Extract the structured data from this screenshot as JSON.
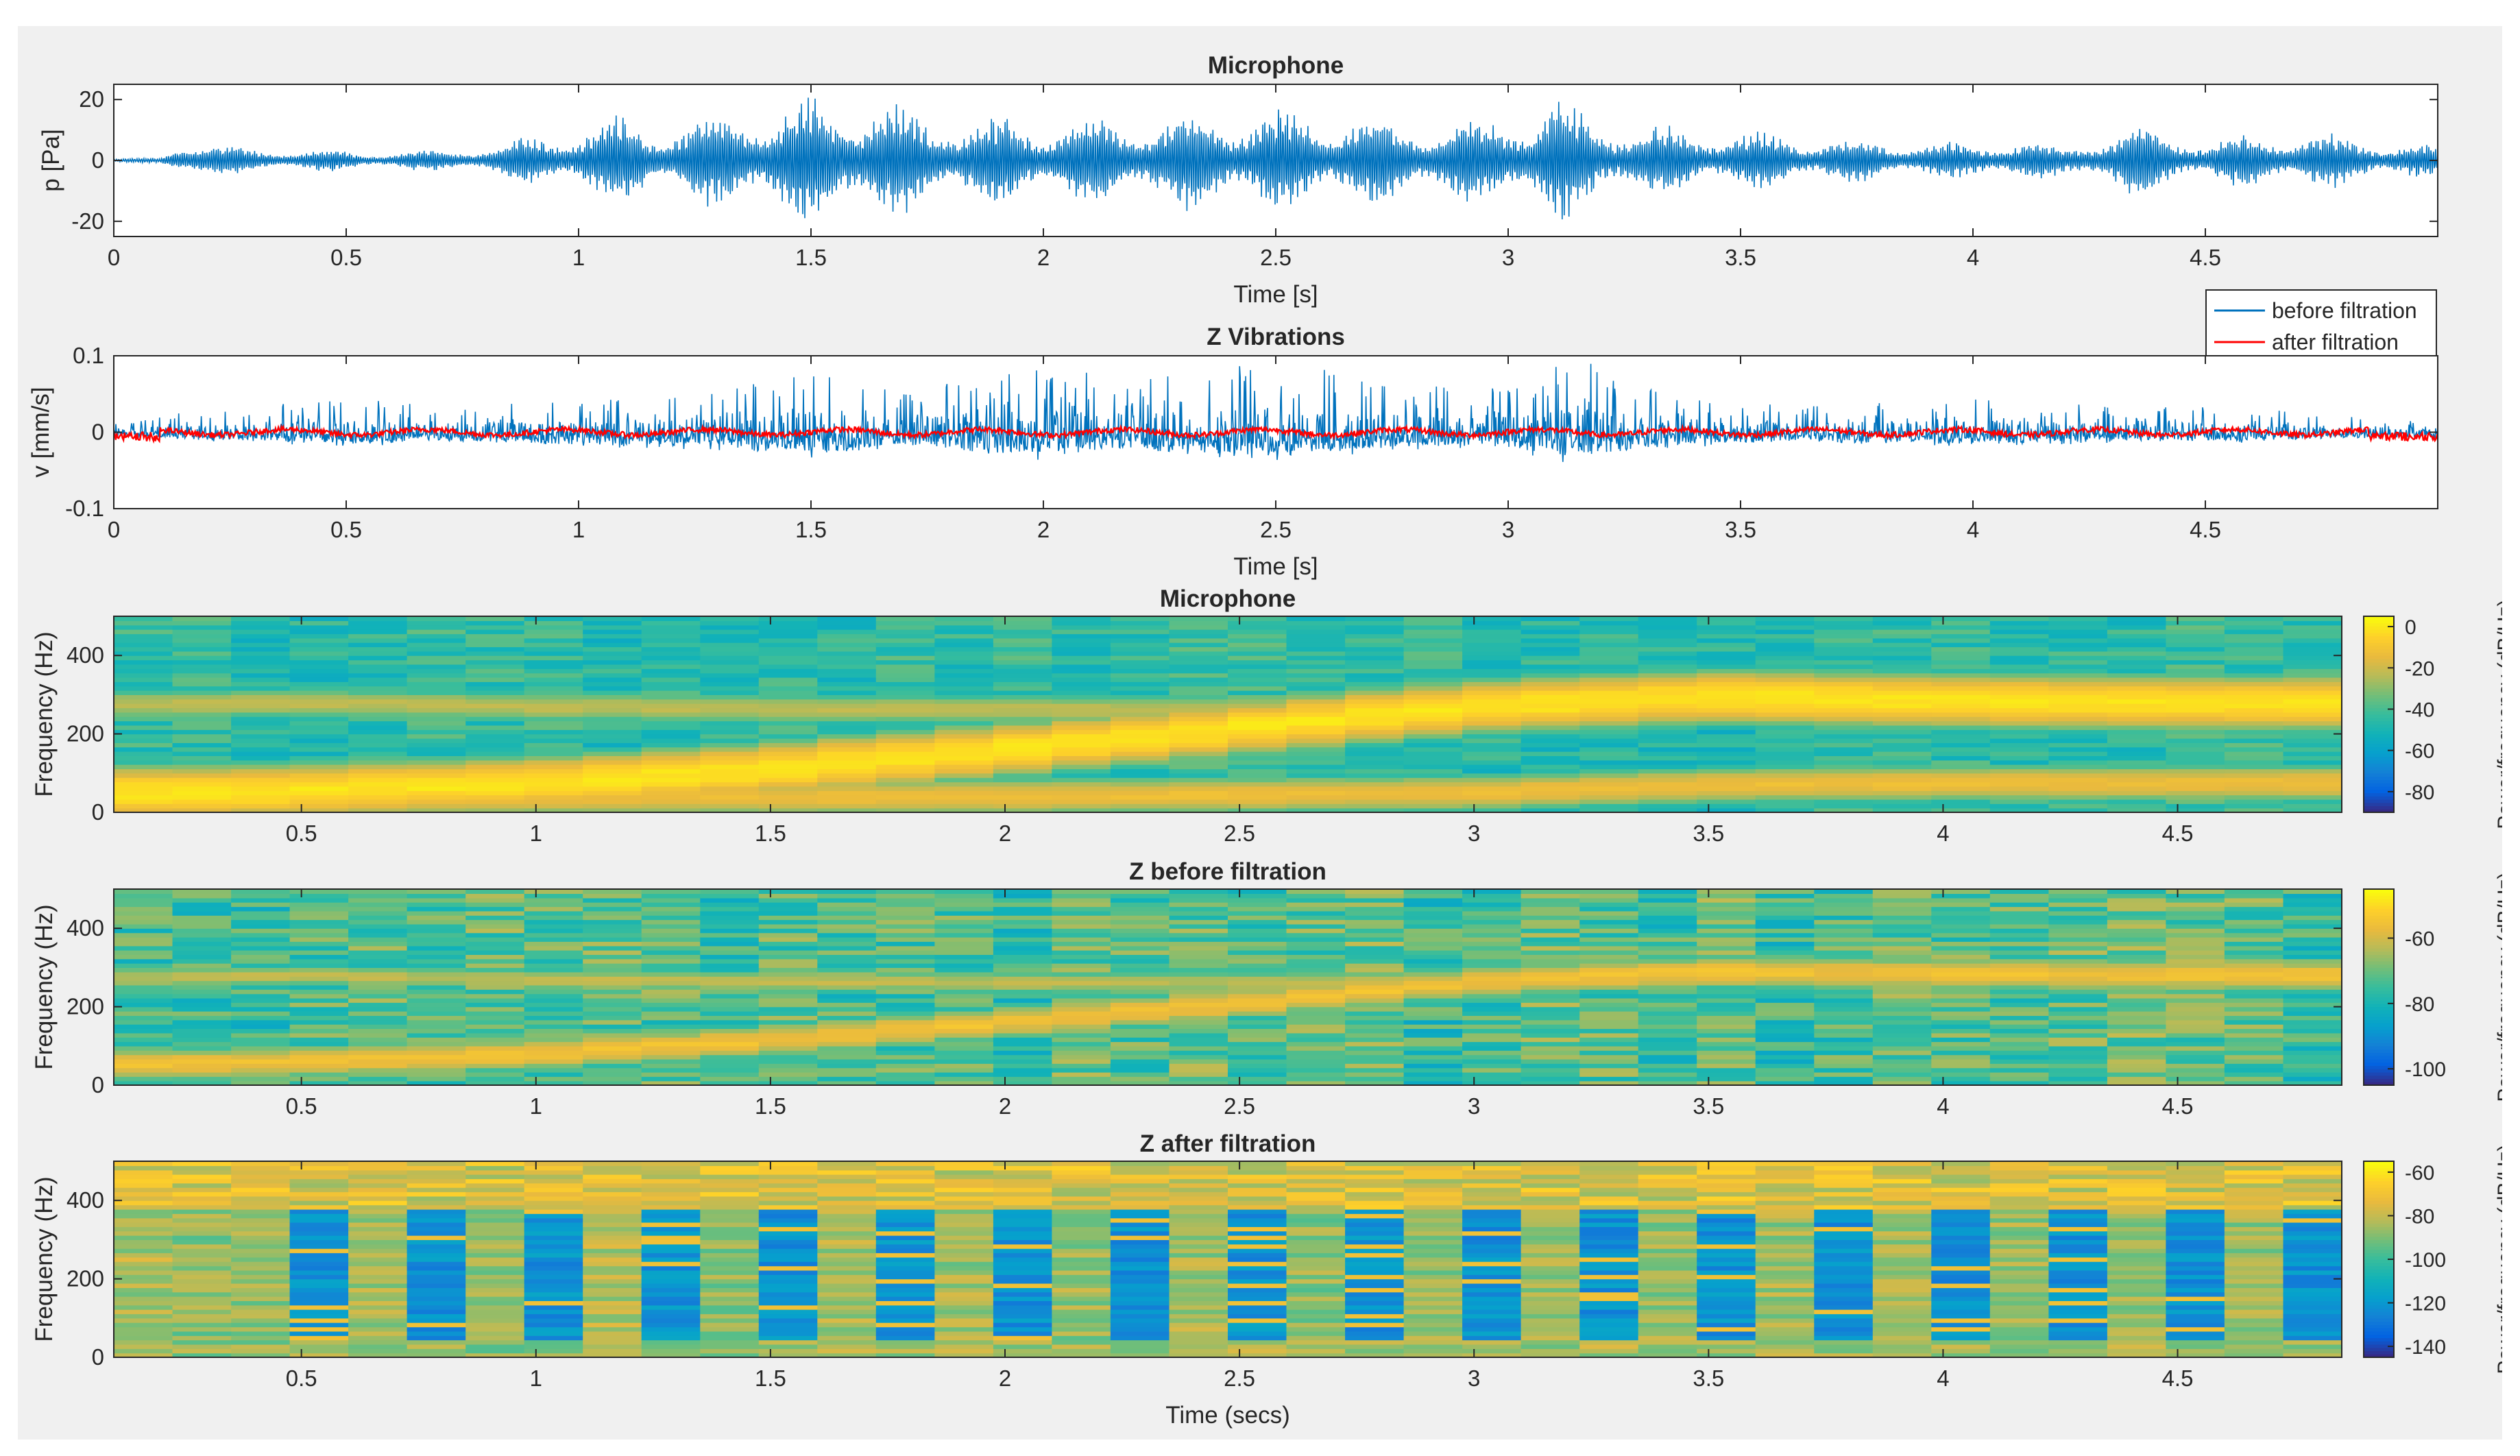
{
  "figure": {
    "background": "#f0f0f0"
  },
  "colors": {
    "before": "#0072bd",
    "after": "#ff0000",
    "axis": "#262626"
  },
  "chart_data": [
    {
      "type": "line",
      "title": "Microphone",
      "xlabel": "Time [s]",
      "ylabel": "p [Pa]",
      "xlim": [
        0,
        5
      ],
      "ylim": [
        -25,
        25
      ],
      "xticks": [
        0,
        0.5,
        1,
        1.5,
        2,
        2.5,
        3,
        3.5,
        4,
        4.5
      ],
      "xtick_labels": [
        "0",
        "0.5",
        "1",
        "1.5",
        "2",
        "2.5",
        "3",
        "3.5",
        "4",
        "4.5"
      ],
      "yticks": [
        -20,
        0,
        20
      ],
      "ytick_labels": [
        "-20",
        "0",
        "20"
      ],
      "series": [
        {
          "name": "p",
          "color": "#0072bd",
          "envelope_t": [
            0,
            0.1,
            0.15,
            0.25,
            0.35,
            0.5,
            0.6,
            0.8,
            0.95,
            1.1,
            1.2,
            1.3,
            1.45,
            1.55,
            1.65,
            1.8,
            2.0,
            2.2,
            2.4,
            2.6,
            2.8,
            3.0,
            3.1,
            3.2,
            3.4,
            3.6,
            3.8,
            4.0,
            4.1,
            4.2,
            4.35,
            4.5,
            4.65,
            4.8,
            4.95,
            5.0
          ],
          "envelope_amp": [
            0.5,
            1,
            8,
            5,
            4,
            3.5,
            3,
            5,
            10,
            16,
            13,
            17,
            20,
            24,
            20,
            16,
            14,
            16,
            18,
            17,
            14,
            16,
            22,
            14,
            11,
            9,
            7,
            6,
            8,
            5,
            14,
            7,
            11,
            9,
            6,
            5
          ]
        }
      ]
    },
    {
      "type": "line",
      "title": "Z Vibrations",
      "xlabel": "Time [s]",
      "ylabel": "v [mm/s]",
      "xlim": [
        0,
        5
      ],
      "ylim": [
        -0.1,
        0.1
      ],
      "xticks": [
        0,
        0.5,
        1,
        1.5,
        2,
        2.5,
        3,
        3.5,
        4,
        4.5
      ],
      "xtick_labels": [
        "0",
        "0.5",
        "1",
        "1.5",
        "2",
        "2.5",
        "3",
        "3.5",
        "4",
        "4.5"
      ],
      "yticks": [
        -0.1,
        0,
        0.1
      ],
      "ytick_labels": [
        "-0.1",
        "0",
        "0.1"
      ],
      "legend": {
        "position": "top-right",
        "entries": [
          {
            "label": "before filtration",
            "color": "#0072bd"
          },
          {
            "label": "after filtration",
            "color": "#ff0000"
          }
        ]
      },
      "series": [
        {
          "name": "before filtration",
          "color": "#0072bd",
          "envelope_t": [
            0,
            0.1,
            0.3,
            0.5,
            0.7,
            1.0,
            1.3,
            1.5,
            1.7,
            2.0,
            2.2,
            2.5,
            2.7,
            3.0,
            3.15,
            3.3,
            3.6,
            4.0,
            4.3,
            4.6,
            4.8,
            5.0
          ],
          "envelope_amp": [
            0.01,
            0.02,
            0.03,
            0.04,
            0.03,
            0.04,
            0.05,
            0.07,
            0.05,
            0.08,
            0.06,
            0.09,
            0.06,
            0.05,
            0.09,
            0.05,
            0.03,
            0.04,
            0.03,
            0.03,
            0.02,
            0.02
          ]
        },
        {
          "name": "after filtration",
          "color": "#ff0000",
          "amplitude": 0.006
        }
      ]
    },
    {
      "type": "heatmap",
      "title": "Microphone",
      "ylabel": "Frequency (Hz)",
      "xlim": [
        0.1,
        4.85
      ],
      "ylim": [
        0,
        500
      ],
      "xticks": [
        0.5,
        1,
        1.5,
        2,
        2.5,
        3,
        3.5,
        4,
        4.5
      ],
      "xtick_labels": [
        "0.5",
        "1",
        "1.5",
        "2",
        "2.5",
        "3",
        "3.5",
        "4",
        "4.5"
      ],
      "yticks": [
        0,
        200,
        400
      ],
      "ytick_labels": [
        "0",
        "200",
        "400"
      ],
      "colorbar_label": "Power/frequency (dB/Hz)",
      "clim": [
        -90,
        5
      ],
      "colorbar_ticks": [
        0,
        -20,
        -40,
        -60,
        -80
      ],
      "colorbar_tick_labels": [
        "0",
        "-20",
        "-40",
        "-60",
        "-80"
      ],
      "segments": 38,
      "freq_bins": 45,
      "ridges": [
        {
          "t": [
            0.1,
            0.5,
            1.0,
            1.5,
            2.0,
            2.5,
            3.0,
            3.5,
            4.0,
            4.5,
            4.85
          ],
          "f": [
            275,
            280,
            270,
            265,
            262,
            262,
            265,
            268,
            270,
            272,
            272
          ],
          "level": -22,
          "width": 18
        },
        {
          "t": [
            0.1,
            0.5,
            1.0,
            1.5,
            2.0,
            2.5,
            3.0,
            3.5,
            4.0,
            4.5,
            4.85
          ],
          "f": [
            50,
            55,
            75,
            110,
            160,
            215,
            270,
            295,
            285,
            280,
            280
          ],
          "level": 0,
          "width": 28
        },
        {
          "t": [
            0.1,
            2.0,
            3.0,
            3.5,
            4.0,
            4.85
          ],
          "f": [
            35,
            40,
            50,
            70,
            75,
            75
          ],
          "level": -12,
          "width": 20
        }
      ],
      "background_level": -45
    },
    {
      "type": "heatmap",
      "title": "Z before filtration",
      "ylabel": "Frequency (Hz)",
      "xlim": [
        0.1,
        4.85
      ],
      "ylim": [
        0,
        500
      ],
      "xticks": [
        0.5,
        1,
        1.5,
        2,
        2.5,
        3,
        3.5,
        4,
        4.5
      ],
      "xtick_labels": [
        "0.5",
        "1",
        "1.5",
        "2",
        "2.5",
        "3",
        "3.5",
        "4",
        "4.5"
      ],
      "yticks": [
        0,
        200,
        400
      ],
      "ytick_labels": [
        "0",
        "200",
        "400"
      ],
      "colorbar_label": "Power/frequency (dB/Hz)",
      "clim": [
        -105,
        -45
      ],
      "colorbar_ticks": [
        -60,
        -80,
        -100
      ],
      "colorbar_tick_labels": [
        "-60",
        "-80",
        "-100"
      ],
      "segments": 38,
      "freq_bins": 45,
      "ridges": [
        {
          "t": [
            0.1,
            0.5,
            1.0,
            1.5,
            2.0,
            2.5,
            3.0,
            3.5,
            4.0,
            4.85
          ],
          "f": [
            275,
            280,
            270,
            265,
            262,
            262,
            268,
            275,
            275,
            275
          ],
          "level": -62,
          "width": 16
        },
        {
          "t": [
            0.1,
            0.5,
            1.0,
            1.5,
            2.0,
            2.5,
            3.0,
            3.5,
            4.0,
            4.85
          ],
          "f": [
            50,
            60,
            80,
            115,
            160,
            210,
            265,
            290,
            285,
            280
          ],
          "level": -55,
          "width": 22
        }
      ],
      "background_level": -73
    },
    {
      "type": "heatmap",
      "title": "Z after filtration",
      "xlabel": "Time (secs)",
      "ylabel": "Frequency (Hz)",
      "xlim": [
        0.1,
        4.85
      ],
      "ylim": [
        0,
        500
      ],
      "xticks": [
        0.5,
        1,
        1.5,
        2,
        2.5,
        3,
        3.5,
        4,
        4.5
      ],
      "xtick_labels": [
        "0.5",
        "1",
        "1.5",
        "2",
        "2.5",
        "3",
        "3.5",
        "4",
        "4.5"
      ],
      "yticks": [
        0,
        200,
        400
      ],
      "ytick_labels": [
        "0",
        "200",
        "400"
      ],
      "colorbar_label": "Power/frequency (dB/Hz)",
      "clim": [
        -145,
        -55
      ],
      "colorbar_ticks": [
        -60,
        -80,
        -100,
        -120,
        -140
      ],
      "colorbar_tick_labels": [
        "-60",
        "-80",
        "-100",
        "-120",
        "-140"
      ],
      "segments": 38,
      "freq_bins": 45,
      "dark_columns": [
        3,
        5,
        7,
        9,
        11,
        13,
        15,
        17,
        19,
        21,
        23,
        25,
        27,
        29,
        31,
        33,
        35,
        37
      ],
      "dark_range_hz": [
        40,
        380
      ],
      "dark_level": -122,
      "background_level": -85
    }
  ]
}
